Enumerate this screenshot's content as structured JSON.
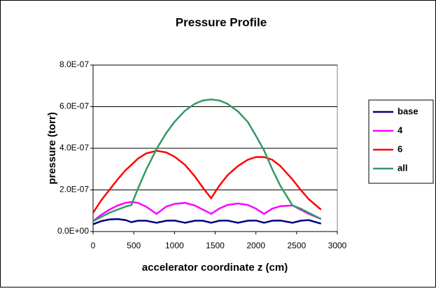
{
  "chart_data": {
    "type": "line",
    "title": "Pressure Profile",
    "x_label": "accelerator coordinate z (cm)",
    "y_label": "pressure (torr)",
    "x": [
      0,
      100,
      200,
      300,
      400,
      470,
      550,
      650,
      780,
      900,
      1000,
      1130,
      1250,
      1350,
      1450,
      1550,
      1650,
      1780,
      1900,
      2000,
      2100,
      2200,
      2300,
      2450,
      2550,
      2650,
      2800
    ],
    "series": [
      {
        "name": "base",
        "color": "#000080",
        "values": [
          3.5e-08,
          5e-08,
          5.8e-08,
          6e-08,
          5.5e-08,
          4.5e-08,
          5.2e-08,
          5.2e-08,
          4.2e-08,
          5.2e-08,
          5.3e-08,
          4.2e-08,
          5.2e-08,
          5.2e-08,
          4.2e-08,
          5.2e-08,
          5.3e-08,
          4.2e-08,
          5.2e-08,
          5.3e-08,
          4.2e-08,
          5.2e-08,
          5.3e-08,
          4.2e-08,
          5.2e-08,
          5.5e-08,
          3.8e-08
        ]
      },
      {
        "name": "4",
        "color": "#ff00ff",
        "values": [
          5e-08,
          8e-08,
          1.05e-07,
          1.25e-07,
          1.38e-07,
          1.42e-07,
          1.38e-07,
          1.2e-07,
          8.5e-08,
          1.2e-07,
          1.33e-07,
          1.38e-07,
          1.25e-07,
          1.05e-07,
          8.5e-08,
          1.1e-07,
          1.28e-07,
          1.35e-07,
          1.28e-07,
          1.1e-07,
          8.5e-08,
          1.1e-07,
          1.22e-07,
          1.25e-07,
          1.05e-07,
          8.5e-08,
          6e-08
        ]
      },
      {
        "name": "6",
        "color": "#ff0000",
        "values": [
          9e-08,
          1.5e-07,
          2e-07,
          2.5e-07,
          2.95e-07,
          3.2e-07,
          3.5e-07,
          3.75e-07,
          3.88e-07,
          3.8e-07,
          3.6e-07,
          3.2e-07,
          2.65e-07,
          2.1e-07,
          1.6e-07,
          2.2e-07,
          2.7e-07,
          3.15e-07,
          3.45e-07,
          3.58e-07,
          3.58e-07,
          3.45e-07,
          3.15e-07,
          2.5e-07,
          2e-07,
          1.55e-07,
          1.05e-07
        ]
      },
      {
        "name": "all",
        "color": "#339966",
        "values": [
          5e-08,
          7e-08,
          9e-08,
          1.05e-07,
          1.2e-07,
          1.27e-07,
          2.05e-07,
          2.95e-07,
          3.97e-07,
          4.74e-07,
          5.27e-07,
          5.81e-07,
          6.14e-07,
          6.3e-07,
          6.35e-07,
          6.3e-07,
          6.14e-07,
          5.77e-07,
          5.27e-07,
          4.6e-07,
          3.9e-07,
          3e-07,
          2.2e-07,
          1.25e-07,
          1.1e-07,
          9e-08,
          6e-08
        ]
      }
    ],
    "xlim": [
      0,
      3000
    ],
    "xticks": [
      0,
      500,
      1000,
      1500,
      2000,
      2500,
      3000
    ],
    "ylim": [
      0,
      8e-07
    ],
    "yticks": [
      {
        "value": 0,
        "label": "0.0E+00"
      },
      {
        "value": 2e-07,
        "label": "2.0E-07"
      },
      {
        "value": 4e-07,
        "label": "4.0E-07"
      },
      {
        "value": 6e-07,
        "label": "6.0E-07"
      },
      {
        "value": 8e-07,
        "label": "8.0E-07"
      }
    ],
    "grid": true,
    "legend": "right"
  }
}
